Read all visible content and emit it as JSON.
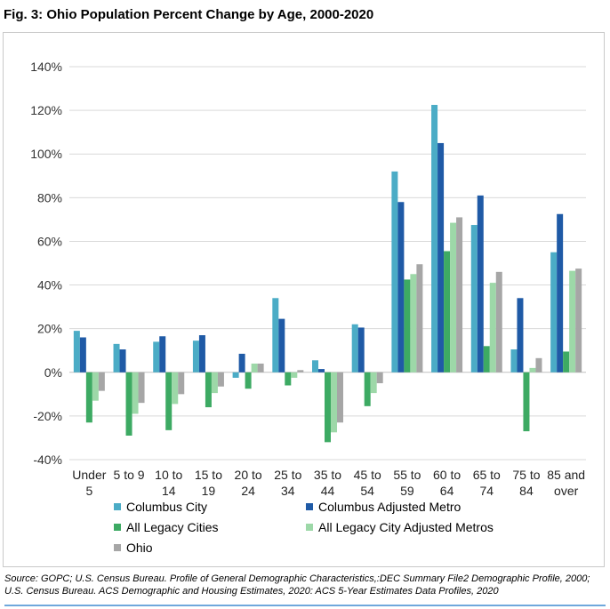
{
  "figure_title": "Fig. 3: Ohio Population Percent Change by Age, 2000-2020",
  "source_note": "Source: GOPC; U.S. Census Bureau. Profile of General Demographic Characteristics,:DEC Summary File2 Demographic Profile, 2000; U.S. Census Bureau. ACS Demographic and Housing Estimates, 2020: ACS 5-Year Estimates Data Profiles, 2020",
  "chart_data": {
    "type": "bar",
    "title": "Ohio Population Percent Change by Age, 2000-2020",
    "xlabel": "",
    "ylabel": "",
    "ylim": [
      -40,
      140
    ],
    "yticks": [
      -40,
      -20,
      0,
      20,
      40,
      60,
      80,
      100,
      120,
      140
    ],
    "ytick_labels": [
      "-40%",
      "-20%",
      "0%",
      "20%",
      "40%",
      "60%",
      "80%",
      "100%",
      "120%",
      "140%"
    ],
    "grid": true,
    "legend_position": "bottom",
    "categories": [
      [
        "Under",
        "5"
      ],
      [
        "5 to 9",
        ""
      ],
      [
        "10 to",
        "14"
      ],
      [
        "15 to",
        "19"
      ],
      [
        "20 to",
        "24"
      ],
      [
        "25 to",
        "34"
      ],
      [
        "35 to",
        "44"
      ],
      [
        "45 to",
        "54"
      ],
      [
        "55 to",
        "59"
      ],
      [
        "60 to",
        "64"
      ],
      [
        "65 to",
        "74"
      ],
      [
        "75 to",
        "84"
      ],
      [
        "85 and",
        "over"
      ]
    ],
    "series": [
      {
        "name": "Columbus City",
        "color": "#4bacc6",
        "values": [
          19,
          13,
          14,
          14.5,
          -2.5,
          34,
          5.5,
          22,
          92,
          122.5,
          67.5,
          10.5,
          55
        ]
      },
      {
        "name": "Columbus Adjusted Metro",
        "color": "#1f5aa6",
        "values": [
          16,
          10.5,
          16.5,
          17,
          8.5,
          24.5,
          1.5,
          20.5,
          78,
          105,
          81,
          34,
          72.5
        ]
      },
      {
        "name": "All Legacy Cities",
        "color": "#3daa63",
        "values": [
          -23,
          -29,
          -26.5,
          -16,
          -7.5,
          -6,
          -32,
          -15.5,
          42.5,
          55.5,
          12,
          -27,
          9.5
        ]
      },
      {
        "name": "All Legacy City Adjusted Metros",
        "color": "#9dd8a8",
        "values": [
          -13,
          -19,
          -14.5,
          -9.5,
          4,
          -2.5,
          -27.5,
          -9.5,
          45,
          68.5,
          41,
          2,
          46.5
        ]
      },
      {
        "name": "Ohio",
        "color": "#a6a6a6",
        "values": [
          -8.5,
          -14,
          -10,
          -6.5,
          4,
          1,
          -23,
          -5,
          49.5,
          71,
          46,
          6.5,
          47.5
        ]
      }
    ]
  }
}
